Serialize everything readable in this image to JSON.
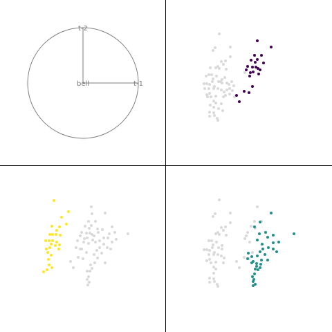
{
  "chart_data": [
    {
      "type": "diagram",
      "panel": "top-left",
      "axes": [
        "t-1",
        "t-2"
      ],
      "center_label": "bell",
      "circle": true,
      "line_color": "#808080"
    },
    {
      "type": "scatter",
      "panel": "top-right",
      "highlight_color": "#440154",
      "background_color": "#d9d9d9",
      "xlim": [
        0,
        240
      ],
      "ylim": [
        0,
        240
      ],
      "points": [
        [
          77,
          49
        ],
        [
          93,
          68
        ],
        [
          71,
          69
        ],
        [
          68,
          73
        ],
        [
          93,
          82
        ],
        [
          86,
          88
        ],
        [
          80,
          89
        ],
        [
          83,
          93
        ],
        [
          75,
          96
        ],
        [
          72,
          98
        ],
        [
          77,
          99
        ],
        [
          87,
          100
        ],
        [
          114,
          105
        ],
        [
          62,
          108
        ],
        [
          66,
          108
        ],
        [
          73,
          110
        ],
        [
          68,
          114
        ],
        [
          81,
          115
        ],
        [
          67,
          118
        ],
        [
          76,
          118
        ],
        [
          81,
          120
        ],
        [
          55,
          121
        ],
        [
          59,
          121
        ],
        [
          63,
          122
        ],
        [
          70,
          125
        ],
        [
          62,
          128
        ],
        [
          69,
          128
        ],
        [
          75,
          128
        ],
        [
          80,
          130
        ],
        [
          84,
          133
        ],
        [
          63,
          135
        ],
        [
          59,
          137
        ],
        [
          65,
          140
        ],
        [
          72,
          139
        ],
        [
          83,
          140
        ],
        [
          69,
          146
        ],
        [
          72,
          149
        ],
        [
          69,
          155
        ],
        [
          63,
          162
        ],
        [
          69,
          163
        ],
        [
          70,
          167
        ],
        [
          63,
          168
        ],
        [
          74,
          171
        ],
        [
          75,
          174
        ],
        [
          79,
          118
        ],
        [
          85,
          112
        ],
        [
          88,
          120
        ],
        [
          91,
          122
        ],
        [
          95,
          118
        ],
        [
          98,
          124
        ],
        [
          92,
          128
        ],
        [
          88,
          130
        ],
        [
          96,
          131
        ],
        [
          92,
          136
        ],
        [
          86,
          138
        ],
        [
          99,
          140
        ],
        [
          80,
          150
        ],
        [
          76,
          157
        ],
        [
          82,
          160
        ],
        [
          64,
          152
        ],
        [
          60,
          140
        ],
        [
          56,
          128
        ],
        [
          58,
          110
        ],
        [
          64,
          98
        ]
      ],
      "highlight": [
        [
          132,
          59
        ],
        [
          152,
          68
        ],
        [
          128,
          80
        ],
        [
          138,
          80
        ],
        [
          123,
          87
        ],
        [
          132,
          86
        ],
        [
          129,
          90
        ],
        [
          141,
          91
        ],
        [
          118,
          96
        ],
        [
          125,
          97
        ],
        [
          130,
          97
        ],
        [
          133,
          99
        ],
        [
          136,
          101
        ],
        [
          116,
          101
        ],
        [
          122,
          105
        ],
        [
          126,
          104
        ],
        [
          134,
          107
        ],
        [
          121,
          110
        ],
        [
          113,
          132
        ],
        [
          120,
          134
        ],
        [
          102,
          138
        ],
        [
          106,
          147
        ],
        [
          125,
          125
        ]
      ]
    },
    {
      "type": "scatter",
      "panel": "bottom-left",
      "highlight_color": "#fde725",
      "background_color": "#d9d9d9",
      "xlim": [
        0,
        240
      ],
      "ylim": [
        0,
        240
      ],
      "points": [
        [
          132,
          59
        ],
        [
          133,
          69
        ],
        [
          128,
          80
        ],
        [
          138,
          80
        ],
        [
          123,
          87
        ],
        [
          132,
          86
        ],
        [
          129,
          90
        ],
        [
          141,
          91
        ],
        [
          118,
          96
        ],
        [
          125,
          97
        ],
        [
          130,
          97
        ],
        [
          133,
          99
        ],
        [
          136,
          101
        ],
        [
          116,
          101
        ],
        [
          122,
          105
        ],
        [
          126,
          104
        ],
        [
          134,
          107
        ],
        [
          121,
          110
        ],
        [
          113,
          132
        ],
        [
          120,
          134
        ],
        [
          102,
          138
        ],
        [
          106,
          147
        ],
        [
          125,
          125
        ],
        [
          152,
          68
        ],
        [
          162,
          88
        ],
        [
          166,
          96
        ],
        [
          158,
          98
        ],
        [
          168,
          106
        ],
        [
          156,
          104
        ],
        [
          162,
          110
        ],
        [
          150,
          113
        ],
        [
          144,
          118
        ],
        [
          155,
          118
        ],
        [
          140,
          122
        ],
        [
          147,
          126
        ],
        [
          136,
          128
        ],
        [
          141,
          133
        ],
        [
          137,
          140
        ],
        [
          131,
          143
        ],
        [
          133,
          148
        ],
        [
          130,
          152
        ],
        [
          128,
          160
        ],
        [
          126,
          164
        ],
        [
          129,
          168
        ],
        [
          127,
          172
        ],
        [
          185,
          98
        ],
        [
          148,
          92
        ],
        [
          152,
          140
        ],
        [
          144,
          108
        ],
        [
          118,
          120
        ],
        [
          110,
          118
        ],
        [
          112,
          108
        ],
        [
          160,
          120
        ],
        [
          138,
          110
        ],
        [
          126,
          152
        ],
        [
          116,
          120
        ],
        [
          150,
          104
        ],
        [
          142,
          96
        ],
        [
          128,
          112
        ]
      ],
      "highlight": [
        [
          78,
          50
        ],
        [
          99,
          66
        ],
        [
          89,
          74
        ],
        [
          96,
          84
        ],
        [
          75,
          87
        ],
        [
          86,
          88
        ],
        [
          82,
          93
        ],
        [
          72,
          99
        ],
        [
          76,
          99
        ],
        [
          81,
          99
        ],
        [
          87,
          100
        ],
        [
          71,
          108
        ],
        [
          76,
          108
        ],
        [
          66,
          108
        ],
        [
          82,
          110
        ],
        [
          74,
          113
        ],
        [
          86,
          114
        ],
        [
          80,
          115
        ],
        [
          67,
          120
        ],
        [
          72,
          118
        ],
        [
          69,
          125
        ],
        [
          85,
          120
        ],
        [
          74,
          129
        ],
        [
          70,
          135
        ],
        [
          63,
          153
        ],
        [
          71,
          143
        ],
        [
          75,
          147
        ],
        [
          68,
          150
        ]
      ]
    },
    {
      "type": "scatter",
      "panel": "bottom-right",
      "highlight_color": "#21918c",
      "background_color": "#d9d9d9",
      "xlim": [
        0,
        240
      ],
      "ylim": [
        0,
        240
      ],
      "points": [
        [
          77,
          49
        ],
        [
          93,
          68
        ],
        [
          71,
          69
        ],
        [
          68,
          73
        ],
        [
          93,
          82
        ],
        [
          86,
          88
        ],
        [
          80,
          89
        ],
        [
          83,
          93
        ],
        [
          75,
          96
        ],
        [
          72,
          98
        ],
        [
          77,
          99
        ],
        [
          87,
          100
        ],
        [
          114,
          105
        ],
        [
          62,
          108
        ],
        [
          66,
          108
        ],
        [
          73,
          110
        ],
        [
          68,
          114
        ],
        [
          81,
          115
        ],
        [
          67,
          118
        ],
        [
          76,
          118
        ],
        [
          81,
          120
        ],
        [
          55,
          121
        ],
        [
          59,
          121
        ],
        [
          63,
          122
        ],
        [
          70,
          125
        ],
        [
          62,
          128
        ],
        [
          69,
          128
        ],
        [
          75,
          128
        ],
        [
          80,
          130
        ],
        [
          84,
          133
        ],
        [
          63,
          135
        ],
        [
          59,
          137
        ],
        [
          65,
          140
        ],
        [
          72,
          139
        ],
        [
          83,
          140
        ],
        [
          69,
          146
        ],
        [
          72,
          149
        ],
        [
          69,
          155
        ],
        [
          63,
          162
        ],
        [
          69,
          163
        ],
        [
          70,
          167
        ],
        [
          63,
          168
        ],
        [
          74,
          171
        ],
        [
          75,
          174
        ],
        [
          102,
          138
        ],
        [
          106,
          147
        ],
        [
          113,
          132
        ],
        [
          120,
          134
        ],
        [
          125,
          125
        ],
        [
          118,
          96
        ],
        [
          121,
          110
        ],
        [
          116,
          101
        ],
        [
          123,
          87
        ],
        [
          128,
          80
        ],
        [
          138,
          80
        ],
        [
          132,
          59
        ],
        [
          152,
          68
        ],
        [
          129,
          90
        ]
      ],
      "highlight": [
        [
          185,
          98
        ],
        [
          152,
          68
        ],
        [
          136,
          81
        ],
        [
          128,
          88
        ],
        [
          144,
          96
        ],
        [
          135,
          98
        ],
        [
          155,
          100
        ],
        [
          147,
          103
        ],
        [
          132,
          107
        ],
        [
          163,
          110
        ],
        [
          139,
          113
        ],
        [
          155,
          111
        ],
        [
          148,
          118
        ],
        [
          140,
          120
        ],
        [
          155,
          120
        ],
        [
          136,
          124
        ],
        [
          143,
          128
        ],
        [
          132,
          130
        ],
        [
          118,
          134
        ],
        [
          138,
          136
        ],
        [
          126,
          138
        ],
        [
          124,
          140
        ],
        [
          131,
          141
        ],
        [
          137,
          142
        ],
        [
          131,
          145
        ],
        [
          129,
          149
        ],
        [
          133,
          150
        ],
        [
          128,
          156
        ],
        [
          125,
          160
        ],
        [
          127,
          164
        ],
        [
          126,
          167
        ],
        [
          129,
          171
        ],
        [
          126,
          173
        ],
        [
          119,
          126
        ],
        [
          124,
          131
        ],
        [
          136,
          147
        ],
        [
          147,
          136
        ],
        [
          160,
          124
        ]
      ]
    }
  ]
}
